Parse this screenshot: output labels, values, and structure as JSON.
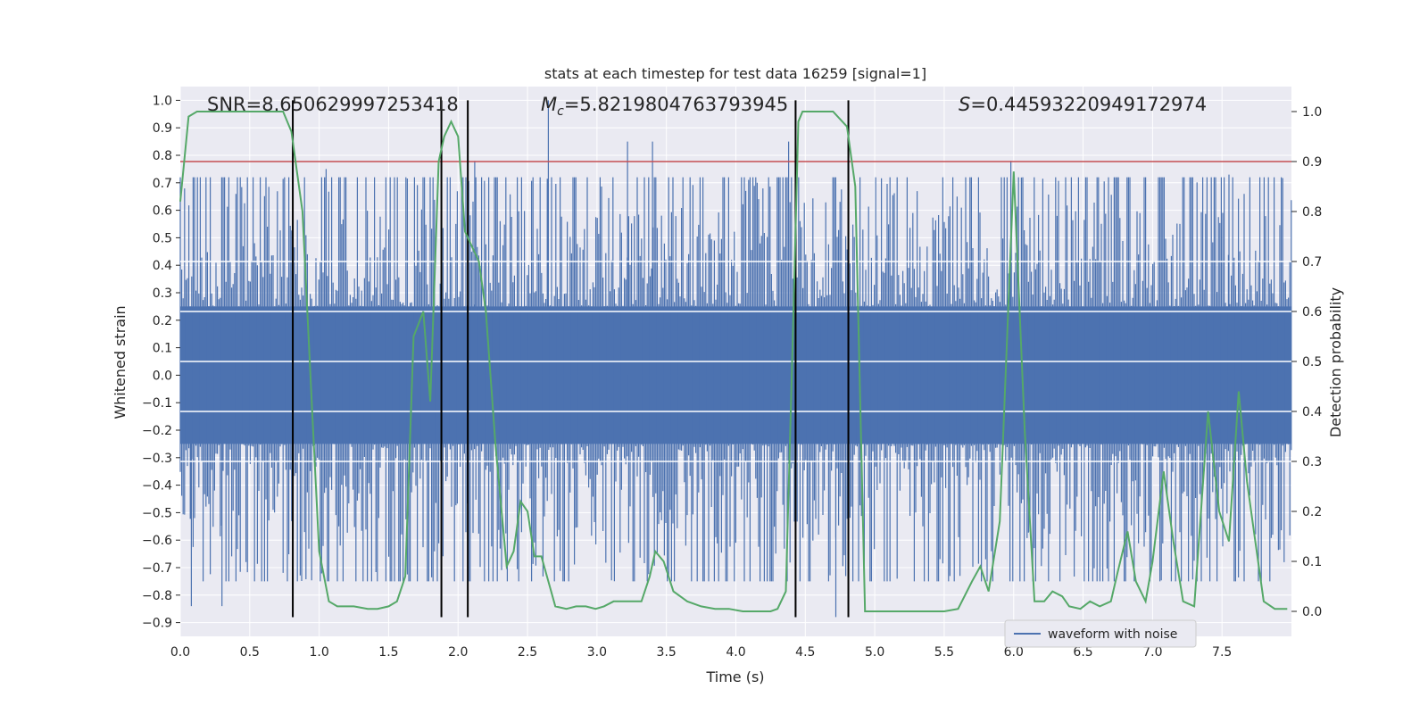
{
  "chart_data": {
    "type": "line",
    "title": "stats at each timestep for test data 16259 [signal=1]",
    "xlabel": "Time (s)",
    "ylabel_left": "Whitened strain",
    "ylabel_right": "Detection probability",
    "xlim": [
      0,
      8
    ],
    "ylim_left": [
      -0.95,
      1.05
    ],
    "ylim_right": [
      -0.05,
      1.05
    ],
    "x_ticks": [
      0.0,
      0.5,
      1.0,
      1.5,
      2.0,
      2.5,
      3.0,
      3.5,
      4.0,
      4.5,
      5.0,
      5.5,
      6.0,
      6.5,
      7.0,
      7.5
    ],
    "y_ticks_left": [
      -0.9,
      -0.8,
      -0.7,
      -0.6,
      -0.5,
      -0.4,
      -0.3,
      -0.2,
      -0.1,
      0.0,
      0.1,
      0.2,
      0.3,
      0.4,
      0.5,
      0.6,
      0.7,
      0.8,
      0.9,
      1.0
    ],
    "y_ticks_right": [
      0.0,
      0.1,
      0.2,
      0.3,
      0.4,
      0.5,
      0.6,
      0.7,
      0.8,
      0.9,
      1.0
    ],
    "annotations": {
      "snr": "SNR=8.650629997253418",
      "mc_symbol": "M",
      "mc_sub": "c",
      "mc_value": "=5.8219804763793945",
      "s_symbol": "S",
      "s_value": "=0.44593220949172974"
    },
    "legend": {
      "position": "lower-right",
      "label": "waveform with noise"
    },
    "grid": true,
    "threshold_right": 0.9,
    "vertical_lines_x": [
      0.81,
      1.88,
      2.07,
      4.43,
      4.81
    ],
    "vertical_lines_ylim_left": [
      -0.88,
      1.0
    ],
    "noise_series": {
      "name": "waveform with noise",
      "core_amplitude": 0.25,
      "typical_peak": 0.5,
      "notable_peaks": [
        {
          "x": 2.65,
          "y": 1.0
        },
        {
          "x": 3.22,
          "y": 0.85
        },
        {
          "x": 3.4,
          "y": 0.85
        },
        {
          "x": 4.38,
          "y": 0.85
        },
        {
          "x": 1.05,
          "y": 0.75
        },
        {
          "x": 4.72,
          "y": -0.88
        },
        {
          "x": 0.08,
          "y": -0.84
        },
        {
          "x": 0.3,
          "y": -0.84
        },
        {
          "x": 5.98,
          "y": 0.78
        },
        {
          "x": 7.55,
          "y": 0.73
        },
        {
          "x": 2.12,
          "y": 0.78
        }
      ],
      "color": "#4c72b0"
    },
    "probability_series": {
      "color": "#55a868",
      "x": [
        0.0,
        0.06,
        0.12,
        0.25,
        0.4,
        0.55,
        0.7,
        0.74,
        0.8,
        0.88,
        0.95,
        1.0,
        1.07,
        1.13,
        1.25,
        1.35,
        1.42,
        1.5,
        1.56,
        1.62,
        1.68,
        1.75,
        1.8,
        1.86,
        1.9,
        1.95,
        2.0,
        2.05,
        2.1,
        2.15,
        2.2,
        2.27,
        2.35,
        2.4,
        2.45,
        2.5,
        2.55,
        2.6,
        2.65,
        2.7,
        2.78,
        2.85,
        2.92,
        2.99,
        3.05,
        3.12,
        3.2,
        3.32,
        3.38,
        3.42,
        3.48,
        3.55,
        3.65,
        3.75,
        3.85,
        3.95,
        4.05,
        4.15,
        4.25,
        4.3,
        4.36,
        4.41,
        4.45,
        4.48,
        4.55,
        4.7,
        4.8,
        4.86,
        4.93,
        5.01,
        5.1,
        5.3,
        5.5,
        5.6,
        5.7,
        5.76,
        5.82,
        5.9,
        6.0,
        6.08,
        6.15,
        6.22,
        6.28,
        6.35,
        6.4,
        6.48,
        6.55,
        6.62,
        6.7,
        6.75,
        6.82,
        6.88,
        6.95,
        7.0,
        7.08,
        7.15,
        7.22,
        7.3,
        7.4,
        7.48,
        7.55,
        7.62,
        7.68,
        7.74,
        7.8,
        7.88,
        7.97
      ],
      "y": [
        0.82,
        0.99,
        1.0,
        1.0,
        1.0,
        1.0,
        1.0,
        1.0,
        0.96,
        0.8,
        0.4,
        0.12,
        0.02,
        0.01,
        0.01,
        0.005,
        0.005,
        0.01,
        0.02,
        0.07,
        0.55,
        0.6,
        0.42,
        0.9,
        0.95,
        0.98,
        0.95,
        0.76,
        0.73,
        0.7,
        0.6,
        0.33,
        0.09,
        0.12,
        0.22,
        0.2,
        0.11,
        0.11,
        0.06,
        0.01,
        0.005,
        0.01,
        0.01,
        0.005,
        0.01,
        0.02,
        0.02,
        0.02,
        0.07,
        0.12,
        0.1,
        0.04,
        0.02,
        0.01,
        0.005,
        0.005,
        0.0,
        0.0,
        0.0,
        0.005,
        0.04,
        0.55,
        0.98,
        1.0,
        1.0,
        1.0,
        0.97,
        0.85,
        0.0,
        0.0,
        0.0,
        0.0,
        0.0,
        0.005,
        0.06,
        0.09,
        0.04,
        0.18,
        0.88,
        0.36,
        0.02,
        0.02,
        0.04,
        0.03,
        0.01,
        0.005,
        0.02,
        0.01,
        0.02,
        0.08,
        0.16,
        0.06,
        0.02,
        0.1,
        0.28,
        0.14,
        0.02,
        0.01,
        0.4,
        0.2,
        0.14,
        0.44,
        0.26,
        0.14,
        0.02,
        0.005,
        0.005
      ]
    }
  }
}
